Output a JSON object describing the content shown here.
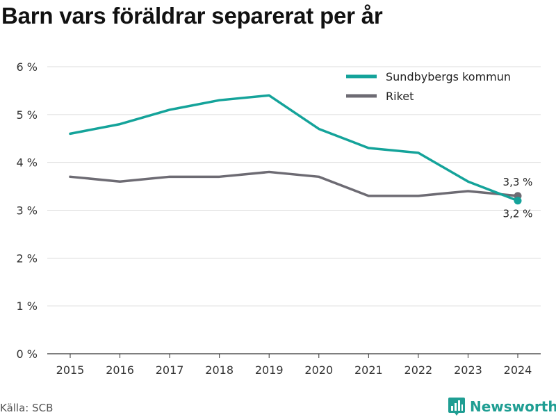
{
  "chart_data": {
    "type": "line",
    "title": "Barn vars föräldrar separerat per år",
    "x": [
      "2015",
      "2016",
      "2017",
      "2018",
      "2019",
      "2020",
      "2021",
      "2022",
      "2023",
      "2024"
    ],
    "ylim": [
      0,
      6
    ],
    "yticks": [
      0,
      1,
      2,
      3,
      4,
      5,
      6
    ],
    "ytick_labels": [
      "0 %",
      "1 %",
      "2 %",
      "3 %",
      "4 %",
      "5 %",
      "6 %"
    ],
    "grid": true,
    "legend_position": "top-right",
    "series": [
      {
        "name": "Sundbybergs kommun",
        "color": "#14a39a",
        "values": [
          4.6,
          4.8,
          5.1,
          5.3,
          5.4,
          4.7,
          4.3,
          4.2,
          3.6,
          3.2
        ],
        "end_label": "3,2 %"
      },
      {
        "name": "Riket",
        "color": "#6d6b73",
        "values": [
          3.7,
          3.6,
          3.7,
          3.7,
          3.8,
          3.7,
          3.3,
          3.3,
          3.4,
          3.3
        ],
        "end_label": "3,3 %"
      }
    ]
  },
  "footer": {
    "source": "Källa: SCB",
    "brand": "Newsworthy",
    "brand_icon": "bar-chart-bubble-icon",
    "brand_color": "#1f9e93"
  }
}
